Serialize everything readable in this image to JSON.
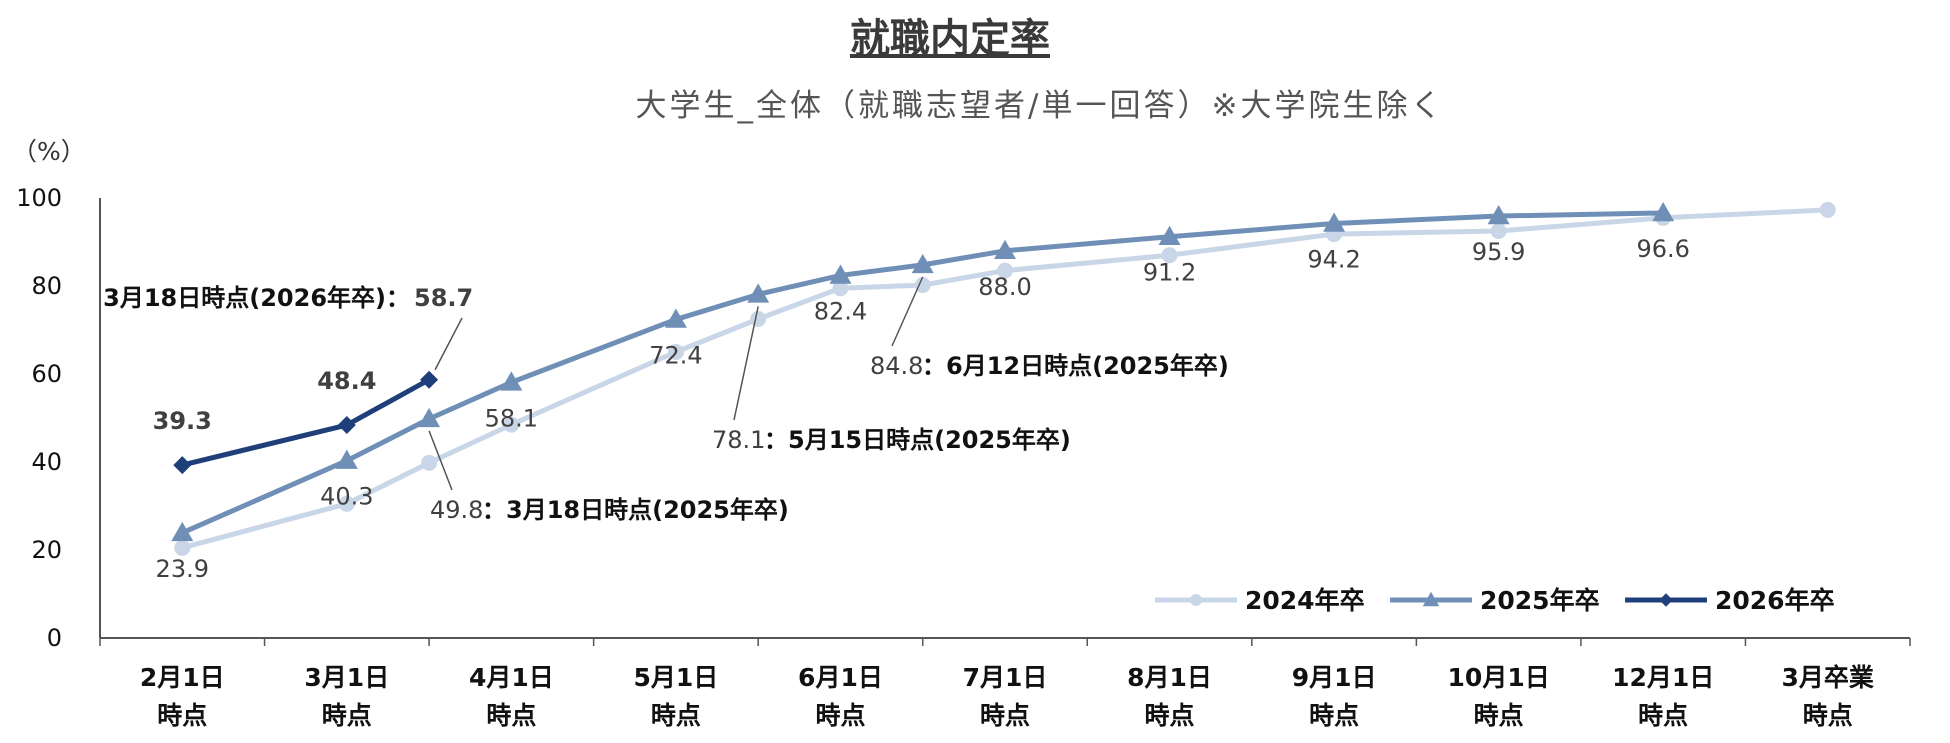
{
  "chart_data": {
    "type": "line",
    "title": "就職内定率",
    "subtitle": "大学生_全体（就職志望者/単一回答）※大学院生除く",
    "y_unit": "（%）",
    "ylim": [
      0,
      100
    ],
    "yticks": [
      "100",
      "80",
      "60",
      "40",
      "20",
      "0"
    ],
    "ytick_values": [
      100,
      80,
      60,
      40,
      20,
      0
    ],
    "categories": [
      [
        "2月1日",
        "時点"
      ],
      [
        "3月1日",
        "時点"
      ],
      [
        "4月1日",
        "時点"
      ],
      [
        "5月1日",
        "時点"
      ],
      [
        "6月1日",
        "時点"
      ],
      [
        "7月1日",
        "時点"
      ],
      [
        "8月1日",
        "時点"
      ],
      [
        "9月1日",
        "時点"
      ],
      [
        "10月1日",
        "時点"
      ],
      [
        "12月1日",
        "時点"
      ],
      [
        "3月卒業",
        "時点"
      ]
    ],
    "legend_position": "bottom-right",
    "series": [
      {
        "name": "2024年卒",
        "color": "#c9d6e7",
        "marker": "circle",
        "points": [
          {
            "x": 0,
            "y": 20.5
          },
          {
            "x": 1,
            "y": 30.5
          },
          {
            "x": 1.5,
            "y": 39.8
          },
          {
            "x": 2,
            "y": 48.5
          },
          {
            "x": 3,
            "y": 65.0
          },
          {
            "x": 3.5,
            "y": 72.5
          },
          {
            "x": 4,
            "y": 79.5
          },
          {
            "x": 4.5,
            "y": 80.2
          },
          {
            "x": 5,
            "y": 83.5
          },
          {
            "x": 6,
            "y": 87.0
          },
          {
            "x": 7,
            "y": 91.8
          },
          {
            "x": 8,
            "y": 92.5
          },
          {
            "x": 9,
            "y": 95.5
          },
          {
            "x": 10,
            "y": 97.3
          }
        ],
        "labels": [
          {
            "x": 0,
            "text": "23.9"
          },
          {
            "x": 1,
            "text": "40.3"
          },
          {
            "x": 2,
            "text": "58.1"
          },
          {
            "x": 3,
            "text": "72.4"
          },
          {
            "x": 4,
            "text": "82.4"
          },
          {
            "x": 5,
            "text": "88.0"
          },
          {
            "x": 6,
            "text": "91.2"
          },
          {
            "x": 7,
            "text": "94.2"
          },
          {
            "x": 8,
            "text": "95.9"
          },
          {
            "x": 9,
            "text": "96.6"
          }
        ]
      },
      {
        "name": "2025年卒",
        "color": "#6f8fb6",
        "marker": "triangle",
        "points": [
          {
            "x": 0,
            "y": 23.9
          },
          {
            "x": 1,
            "y": 40.3
          },
          {
            "x": 1.5,
            "y": 49.8
          },
          {
            "x": 2,
            "y": 58.1
          },
          {
            "x": 3,
            "y": 72.4
          },
          {
            "x": 3.5,
            "y": 78.1
          },
          {
            "x": 4,
            "y": 82.4
          },
          {
            "x": 4.5,
            "y": 84.8
          },
          {
            "x": 5,
            "y": 88.0
          },
          {
            "x": 6,
            "y": 91.2
          },
          {
            "x": 7,
            "y": 94.2
          },
          {
            "x": 8,
            "y": 95.9
          },
          {
            "x": 9,
            "y": 96.6
          }
        ]
      },
      {
        "name": "2026年卒",
        "color": "#1f3f7a",
        "marker": "diamond",
        "points": [
          {
            "x": 0,
            "y": 39.3
          },
          {
            "x": 1,
            "y": 48.4
          },
          {
            "x": 1.5,
            "y": 58.7
          }
        ],
        "labels": [
          {
            "x": 0,
            "text": "39.3"
          },
          {
            "x": 1,
            "text": "48.4"
          }
        ]
      }
    ],
    "callouts": [
      {
        "value": "58.7",
        "text": "3月18日時点(2026年卒)：",
        "x": 1.5,
        "y": 58.7
      },
      {
        "value": "49.8",
        "text": "：3月18日時点(2025年卒)",
        "x": 1.5,
        "y": 49.8
      },
      {
        "value": "78.1",
        "text": "：5月15日時点(2025年卒)",
        "x": 3.5,
        "y": 78.1
      },
      {
        "value": "84.8",
        "text": "：6月12日時点(2025年卒)",
        "x": 4.5,
        "y": 84.8
      }
    ]
  }
}
